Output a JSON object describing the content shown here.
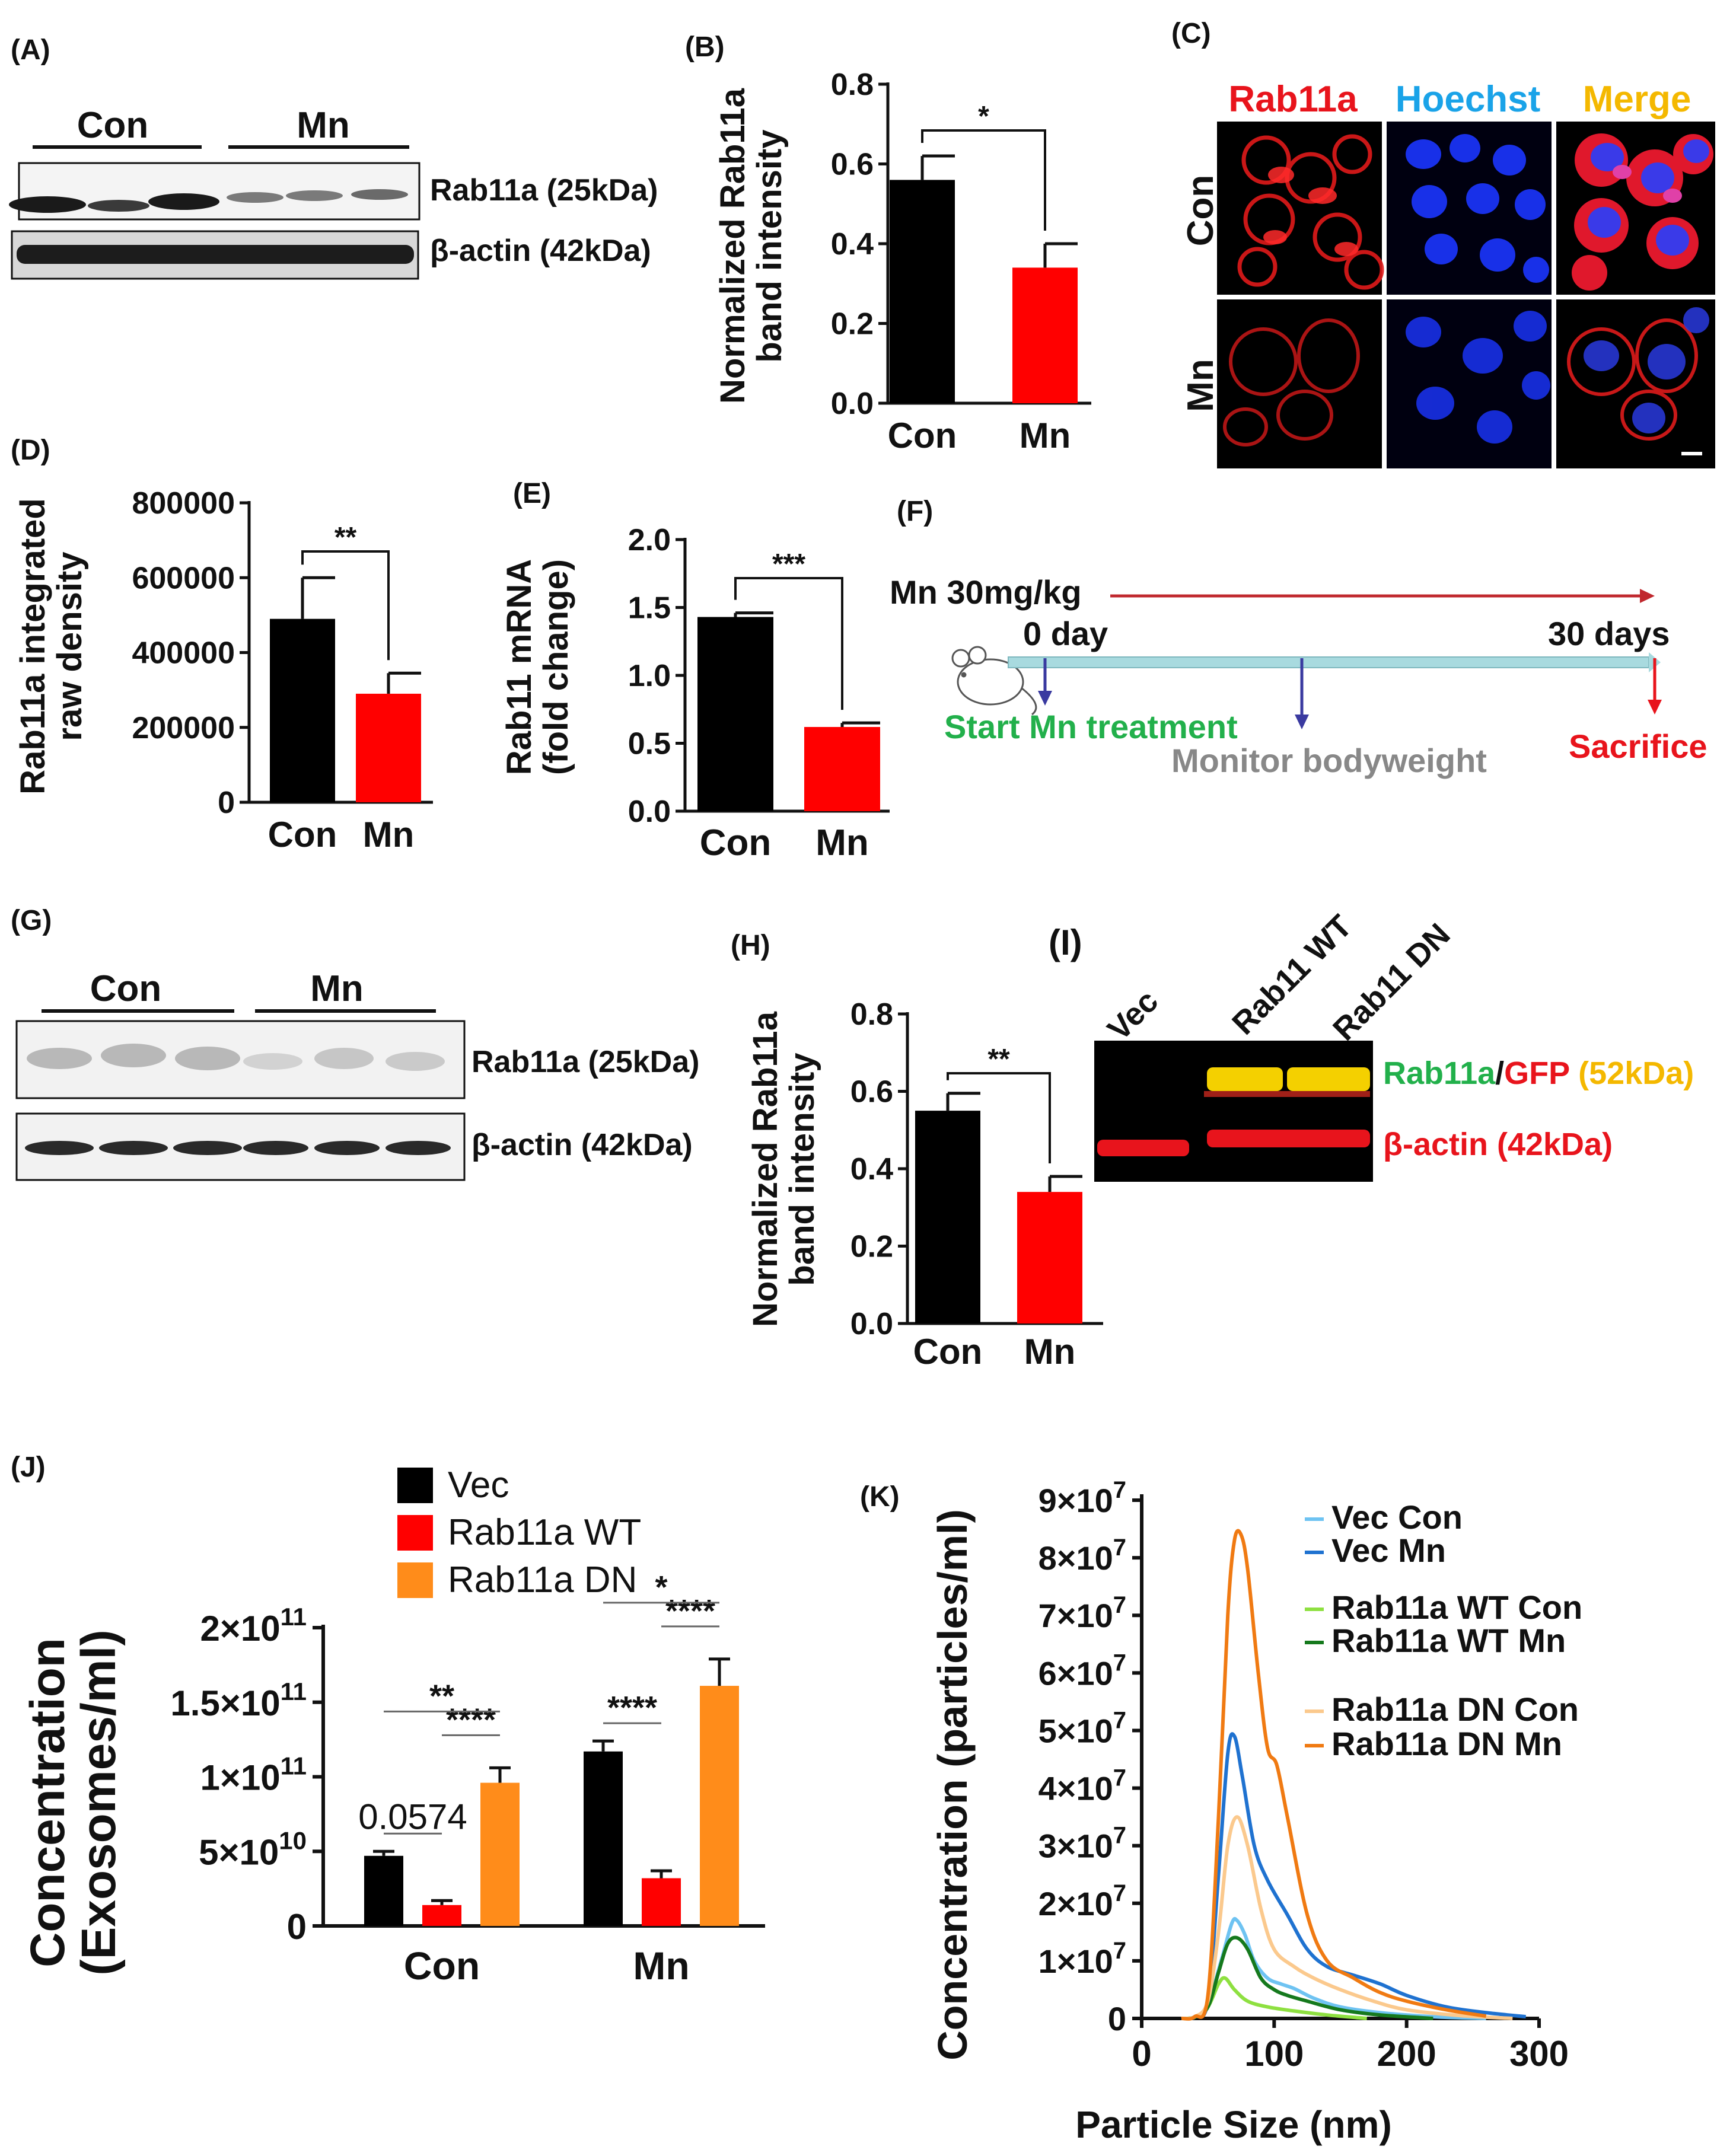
{
  "panels": {
    "A": {
      "label": "(A)",
      "groups": [
        "Con",
        "Mn"
      ],
      "band_labels": [
        "Rab11a (25kDa)",
        "β-actin (42kDa)"
      ]
    },
    "C": {
      "label": "(C)",
      "channels": [
        "Rab11a",
        "Hoechst",
        "Merge"
      ],
      "rows": [
        "Con",
        "Mn"
      ],
      "colors": {
        "rab11a": "#e8141c",
        "hoechst": "#1aa3e8",
        "merge": "#f4b800"
      }
    },
    "F": {
      "label": "(F)",
      "dose": "Mn 30mg/kg",
      "start": "0 day",
      "end": "30 days",
      "step_start": "Start Mn treatment",
      "step_monitor": "Monitor bodyweight",
      "step_end": "Sacrifice",
      "colors": {
        "start": "#22b04b",
        "monitor": "#888888",
        "end": "#e8141c",
        "arrow": "#c0282e",
        "line": "#a8dadf"
      }
    },
    "G": {
      "label": "(G)",
      "groups": [
        "Con",
        "Mn"
      ],
      "band_labels": [
        "Rab11a (25kDa)",
        "β-actin (42kDa)"
      ]
    },
    "I": {
      "label": "(I)",
      "lanes": [
        "Vec",
        "Rab11 WT",
        "Rab11 DN"
      ],
      "label_rab11a": "Rab11a",
      "label_sep": "/",
      "label_gfp": "GFP",
      "label_kda": "(52kDa)",
      "label_actin": "β-actin (42kDa)",
      "colors": {
        "green": "#22b04b",
        "red": "#e8141c",
        "yellow": "#f4b800"
      }
    }
  },
  "chart_data": [
    {
      "id": "B",
      "label": "(B)",
      "type": "bar",
      "categories": [
        "Con",
        "Mn"
      ],
      "values": [
        0.56,
        0.34
      ],
      "errors": [
        0.06,
        0.06
      ],
      "colors": [
        "#000000",
        "#ff0000"
      ],
      "ylabel": [
        "Normalized Rab11a",
        "band intensity"
      ],
      "ylim": [
        0,
        0.8
      ],
      "yticks": [
        "0.0",
        "0.2",
        "0.4",
        "0.6",
        "0.8"
      ],
      "significance": "*"
    },
    {
      "id": "D",
      "label": "(D)",
      "type": "bar",
      "categories": [
        "Con",
        "Mn"
      ],
      "values": [
        490000,
        290000
      ],
      "errors": [
        110000,
        55000
      ],
      "colors": [
        "#000000",
        "#ff0000"
      ],
      "ylabel": [
        "Rab11a integrated",
        "raw density"
      ],
      "ylim": [
        0,
        800000
      ],
      "yticks": [
        "0",
        "200000",
        "400000",
        "600000",
        "800000"
      ],
      "significance": "**"
    },
    {
      "id": "E",
      "label": "(E)",
      "type": "bar",
      "categories": [
        "Con",
        "Mn"
      ],
      "values": [
        1.43,
        0.62
      ],
      "errors": [
        0.03,
        0.03
      ],
      "colors": [
        "#000000",
        "#ff0000"
      ],
      "ylabel": [
        "Rab11 mRNA",
        "(fold change)"
      ],
      "ylim": [
        0,
        2.0
      ],
      "yticks": [
        "0.0",
        "0.5",
        "1.0",
        "1.5",
        "2.0"
      ],
      "significance": "***"
    },
    {
      "id": "H",
      "label": "(H)",
      "type": "bar",
      "categories": [
        "Con",
        "Mn"
      ],
      "values": [
        0.55,
        0.34
      ],
      "errors": [
        0.045,
        0.04
      ],
      "colors": [
        "#000000",
        "#ff0000"
      ],
      "ylabel": [
        "Normalized Rab11a",
        "band intensity"
      ],
      "ylim": [
        0,
        0.8
      ],
      "yticks": [
        "0.0",
        "0.2",
        "0.4",
        "0.6",
        "0.8"
      ],
      "significance": "**"
    },
    {
      "id": "J",
      "label": "(J)",
      "type": "bar",
      "categories": [
        "Con",
        "Mn"
      ],
      "series": [
        {
          "name": "Vec",
          "values": [
            47000000000.0,
            117000000000.0
          ],
          "errors": [
            3000000000.0,
            7000000000.0
          ],
          "color": "#000000"
        },
        {
          "name": "Rab11a WT",
          "values": [
            14000000000.0,
            32000000000.0
          ],
          "errors": [
            3000000000.0,
            5000000000.0
          ],
          "color": "#ff0000"
        },
        {
          "name": "Rab11a DN",
          "values": [
            96000000000.0,
            161000000000.0
          ],
          "errors": [
            10000000000.0,
            18000000000.0
          ],
          "color": "#ff8c1a"
        }
      ],
      "ylabel": [
        "Concentration",
        "(Exosomes/ml)"
      ],
      "ylim": [
        0,
        200000000000.0
      ],
      "yticks": [
        [
          "0",
          ""
        ],
        [
          "5×10",
          "10"
        ],
        [
          "1×10",
          "11"
        ],
        [
          "1.5×10",
          "11"
        ],
        [
          "2×10",
          "11"
        ]
      ],
      "annotations": [
        {
          "group": 0,
          "from": 0,
          "to": 1,
          "text": "0.0574",
          "bold": false
        },
        {
          "group": 0,
          "from": 1,
          "to": 2,
          "text": "****",
          "bold": true
        },
        {
          "group": 0,
          "from": 0,
          "to": 2,
          "text": "**",
          "bold": true
        },
        {
          "group": 1,
          "from": 0,
          "to": 1,
          "text": "****",
          "bold": true
        },
        {
          "group": 1,
          "from": 1,
          "to": 2,
          "text": "****",
          "bold": true
        },
        {
          "group": 1,
          "from": 0,
          "to": 2,
          "text": "*",
          "bold": true
        }
      ]
    },
    {
      "id": "K",
      "label": "(K)",
      "type": "line",
      "xlabel": "Particle Size (nm)",
      "ylabel": "Concentration (particles/ml)",
      "xlim": [
        0,
        300
      ],
      "ylim": [
        0,
        90000000.0
      ],
      "xticks": [
        "0",
        "100",
        "200",
        "300"
      ],
      "yticks": [
        [
          "0",
          ""
        ],
        [
          "1×10",
          "7"
        ],
        [
          "2×10",
          "7"
        ],
        [
          "3×10",
          "7"
        ],
        [
          "4×10",
          "7"
        ],
        [
          "5×10",
          "7"
        ],
        [
          "6×10",
          "7"
        ],
        [
          "7×10",
          "7"
        ],
        [
          "8×10",
          "7"
        ],
        [
          "9×10",
          "7"
        ]
      ],
      "series": [
        {
          "name": "Vec Con",
          "color": "#6ec3f2",
          "x": [
            30,
            40,
            50,
            60,
            68,
            72,
            78,
            85,
            95,
            105,
            115,
            130,
            150,
            180,
            220,
            260
          ],
          "y": [
            0,
            200000.0,
            2500000.0,
            10000000.0,
            16500000.0,
            17000000.0,
            14500000.0,
            10000000.0,
            7000000.0,
            6000000.0,
            5200000.0,
            3500000.0,
            2000000.0,
            1000000.0,
            300000.0,
            0
          ]
        },
        {
          "name": "Vec Mn",
          "color": "#1f72d0",
          "x": [
            30,
            40,
            50,
            58,
            65,
            70,
            76,
            85,
            95,
            110,
            125,
            140,
            160,
            180,
            200,
            230,
            260,
            290
          ],
          "y": [
            0,
            300000.0,
            3000000.0,
            25000000.0,
            46000000.0,
            49000000.0,
            42000000.0,
            30000000.0,
            24000000.0,
            18000000.0,
            12000000.0,
            9000000.0,
            7500000.0,
            6000000.0,
            4000000.0,
            2000000.0,
            1000000.0,
            300000.0
          ]
        },
        {
          "name": "Rab11a WT Con",
          "color": "#8ee040",
          "x": [
            30,
            40,
            50,
            58,
            63,
            70,
            80,
            95,
            115,
            140,
            170
          ],
          "y": [
            0,
            200000.0,
            2000000.0,
            6000000.0,
            7000000.0,
            5000000.0,
            3000000.0,
            2000000.0,
            1300000.0,
            600000.0,
            0
          ]
        },
        {
          "name": "Rab11a WT Mn",
          "color": "#15791d",
          "x": [
            30,
            40,
            50,
            58,
            65,
            72,
            80,
            90,
            100,
            110,
            125,
            150,
            180,
            220
          ],
          "y": [
            0,
            200000.0,
            2000000.0,
            8000000.0,
            13000000.0,
            14000000.0,
            12000000.0,
            7000000.0,
            5000000.0,
            4000000.0,
            3000000.0,
            1500000.0,
            600000.0,
            0
          ]
        },
        {
          "name": "Rab11a DN Con",
          "color": "#fbc98d",
          "x": [
            30,
            40,
            50,
            58,
            65,
            72,
            80,
            90,
            100,
            115,
            130,
            150,
            175,
            200,
            240,
            280
          ],
          "y": [
            0,
            300000.0,
            3000000.0,
            15000000.0,
            30000000.0,
            35000000.0,
            30000000.0,
            19000000.0,
            12000000.0,
            9000000.0,
            7000000.0,
            5000000.0,
            3000000.0,
            1500000.0,
            500000.0,
            0
          ]
        },
        {
          "name": "Rab11a DN Mn",
          "color": "#f07a12",
          "x": [
            30,
            40,
            50,
            58,
            65,
            70,
            75,
            80,
            88,
            95,
            102,
            110,
            125,
            140,
            160,
            180,
            200,
            230,
            260
          ],
          "y": [
            0,
            300000.0,
            4000000.0,
            35000000.0,
            70000000.0,
            83000000.0,
            84000000.0,
            78000000.0,
            60000000.0,
            47000000.0,
            44000000.0,
            35000000.0,
            18000000.0,
            10000000.0,
            7000000.0,
            4500000.0,
            3000000.0,
            1500000.0,
            400000.0
          ]
        }
      ]
    }
  ]
}
